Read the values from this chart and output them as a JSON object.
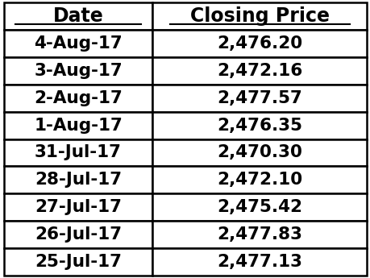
{
  "headers": [
    "Date",
    "Closing Price"
  ],
  "rows": [
    [
      "4-Aug-17",
      "2,476.20"
    ],
    [
      "3-Aug-17",
      "2,472.16"
    ],
    [
      "2-Aug-17",
      "2,477.57"
    ],
    [
      "1-Aug-17",
      "2,476.35"
    ],
    [
      "31-Jul-17",
      "2,470.30"
    ],
    [
      "28-Jul-17",
      "2,472.10"
    ],
    [
      "27-Jul-17",
      "2,475.42"
    ],
    [
      "26-Jul-17",
      "2,477.83"
    ],
    [
      "25-Jul-17",
      "2,477.13"
    ]
  ],
  "background_color": "#ffffff",
  "text_color": "#000000",
  "border_color": "#000000",
  "header_fontsize": 17,
  "row_fontsize": 15.5,
  "col_split": 0.41,
  "fig_width": 4.6,
  "fig_height": 3.45,
  "border_lw": 1.8
}
